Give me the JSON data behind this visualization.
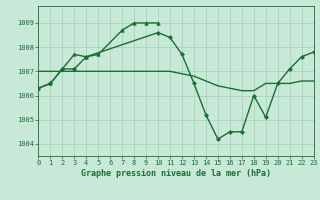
{
  "bg_color": "#c8e8d8",
  "grid_color": "#a8d8c0",
  "line_color": "#1a6e2e",
  "title": "Graphe pression niveau de la mer (hPa)",
  "xlim": [
    0,
    23
  ],
  "ylim": [
    1003.5,
    1009.7
  ],
  "yticks": [
    1004,
    1005,
    1006,
    1007,
    1008,
    1009
  ],
  "xticks": [
    0,
    1,
    2,
    3,
    4,
    5,
    6,
    7,
    8,
    9,
    10,
    11,
    12,
    13,
    14,
    15,
    16,
    17,
    18,
    19,
    20,
    21,
    22,
    23
  ],
  "series": [
    {
      "x": [
        0,
        1,
        2,
        3,
        4,
        5,
        7,
        8,
        9,
        10
      ],
      "y": [
        1006.3,
        1006.5,
        1007.1,
        1007.7,
        1007.6,
        1007.7,
        1008.7,
        1009.0,
        1009.0,
        1009.0
      ],
      "marker": "^",
      "markersize": 2.5,
      "lw": 1.0
    },
    {
      "x": [
        0,
        1,
        2,
        3,
        4,
        10,
        11,
        12,
        13,
        14,
        15,
        16,
        17,
        18,
        19,
        20,
        21,
        22,
        23
      ],
      "y": [
        1006.3,
        1006.5,
        1007.1,
        1007.1,
        1007.6,
        1008.6,
        1008.4,
        1007.7,
        1006.5,
        1005.2,
        1004.2,
        1004.5,
        1004.5,
        1006.0,
        1005.1,
        1006.5,
        1007.1,
        1007.6,
        1007.8
      ],
      "marker": "D",
      "markersize": 2.0,
      "lw": 1.0
    },
    {
      "x": [
        0,
        1,
        2,
        3,
        4,
        5,
        6,
        7,
        8,
        9,
        10,
        11,
        12,
        13,
        14,
        15,
        16,
        17,
        18,
        19,
        20,
        21,
        22,
        23
      ],
      "y": [
        1007.0,
        1007.0,
        1007.0,
        1007.0,
        1007.0,
        1007.0,
        1007.0,
        1007.0,
        1007.0,
        1007.0,
        1007.0,
        1007.0,
        1006.9,
        1006.8,
        1006.6,
        1006.4,
        1006.3,
        1006.2,
        1006.2,
        1006.5,
        1006.5,
        1006.5,
        1006.6,
        1006.6
      ],
      "marker": null,
      "markersize": 0,
      "lw": 1.0
    }
  ]
}
